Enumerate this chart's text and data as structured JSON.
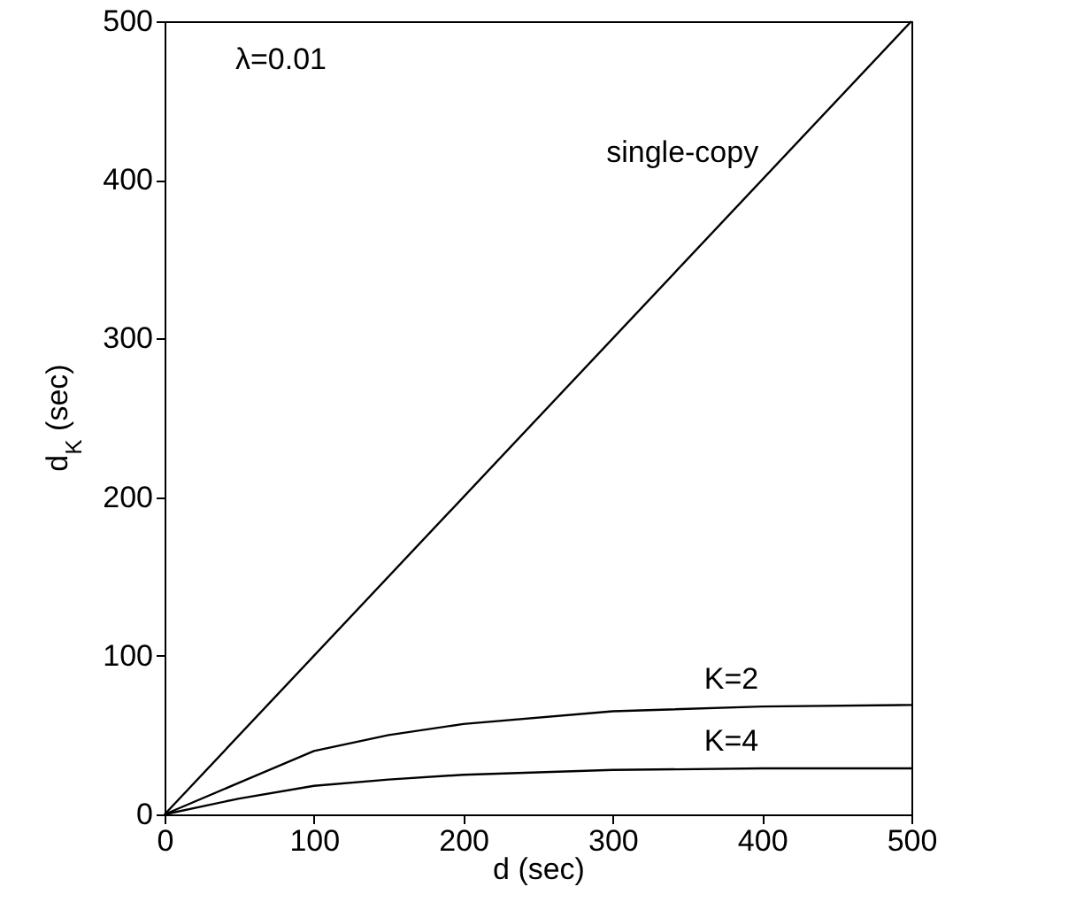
{
  "chart_data": {
    "type": "line",
    "xlabel": "d (sec)",
    "ylabel": "d$_{K}$ (sec)",
    "xlim": [
      0,
      500
    ],
    "xticks": [
      0,
      100,
      200,
      300,
      400,
      500
    ],
    "ylim": [
      0,
      500
    ],
    "yticks": [
      0,
      100,
      200,
      300,
      400,
      500
    ],
    "grid": false,
    "marker": "none",
    "line_style": "solid",
    "x": [
      0,
      50,
      100,
      150,
      200,
      300,
      400,
      500
    ],
    "series": [
      {
        "name": "single-copy",
        "color": "#000000",
        "x": [
          0,
          500
        ],
        "values": [
          0,
          500
        ]
      },
      {
        "name": "K=2",
        "color": "#000000",
        "values": [
          0,
          20,
          40,
          50,
          57,
          65,
          68,
          69
        ]
      },
      {
        "name": "K=4",
        "color": "#000000",
        "values": [
          0,
          10,
          18,
          22,
          25,
          28,
          29,
          29
        ]
      }
    ],
    "annotations": [
      "λ=0.01"
    ]
  }
}
